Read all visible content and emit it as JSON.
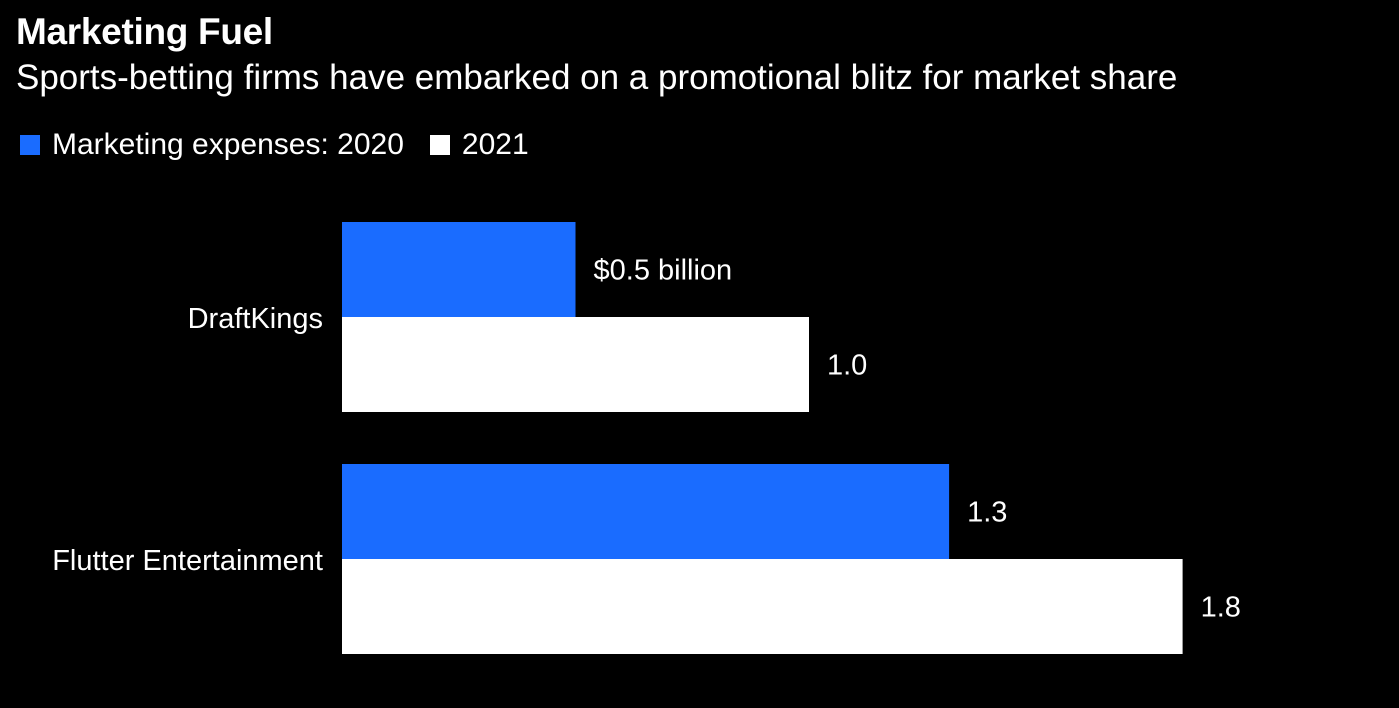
{
  "chart_data": {
    "type": "bar",
    "orientation": "horizontal",
    "title": "Marketing Fuel",
    "subtitle": "Sports-betting firms have embarked on a promotional blitz for market share",
    "categories": [
      "DraftKings",
      "Flutter Entertainment"
    ],
    "series": [
      {
        "name": "Marketing expenses: 2020",
        "color": "#1a6cff",
        "values": [
          0.5,
          1.3
        ],
        "labels": [
          "$0.5 billion",
          "1.3"
        ]
      },
      {
        "name": "2021",
        "color": "#ffffff",
        "values": [
          1.0,
          1.8
        ],
        "labels": [
          "1.0",
          "1.8"
        ]
      }
    ],
    "unit": "billion USD",
    "grid": false,
    "legend_position": "top-left"
  }
}
